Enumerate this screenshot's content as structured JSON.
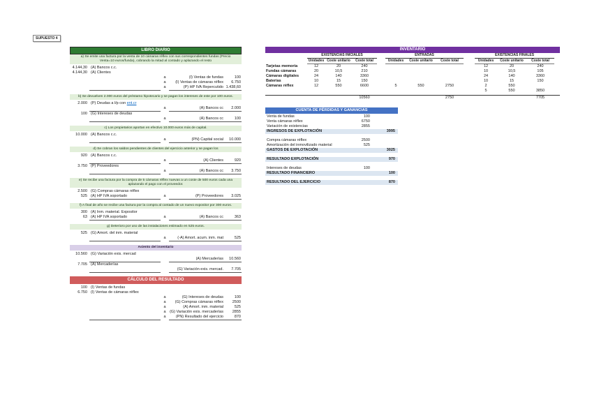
{
  "colors": {
    "green_header": "#2e7b32",
    "green_band": "#e2efda",
    "purple_header": "#7030a0",
    "purple_band": "#d9cfe8",
    "red_header": "#d05c5c",
    "blue_header": "#4472c4",
    "blue_band": "#dce6f1",
    "link": "#0563c1"
  },
  "page": {
    "label": "SUPUESTO 4"
  },
  "journal": {
    "title": "LIBRO DIARIO",
    "sections": [
      {
        "band": "a) Se emite una factura por la venta de 10 cámaras réflex con sus correspondientes fundas (Precio Venta=10 euros/funda), cobrando la mitad al contado y aplazando el resto",
        "band_style": "green",
        "lines": [
          {
            "da": "4.144,30",
            "dt": "(A) Bancos c.c."
          },
          {
            "da": "4.144,30",
            "dt": "(A) Clientes"
          },
          {
            "sep": "a",
            "ct": "(I) Ventas de fundas",
            "ca": "100"
          },
          {
            "sep": "a",
            "ct": "(I) Ventas de cámaras réflex",
            "ca": "6.750"
          },
          {
            "du": true,
            "sep": "a",
            "ct": "(P) HP IVA Repercutido",
            "ca": "1.438,60",
            "cu": true
          }
        ]
      },
      {
        "band": "b) Se devuelven 2.000 euros del préstamo hipotecario y se pagan los intereses de este por 100 euros.",
        "band_style": "green",
        "lines": [
          {
            "da": "2.000",
            "dt": "(P) Deudas a l/p con ",
            "dl": "ent.cr"
          },
          {
            "du": true,
            "sep": "a",
            "ct": "(A) Bancos cc",
            "ca": "2.000",
            "cu": true
          },
          {
            "da": "100",
            "dt": "(G) Intereses de deudas"
          },
          {
            "du": true,
            "sep": "a",
            "ct": "(A) Bancos cc",
            "ca": "100",
            "cu": true
          }
        ]
      },
      {
        "band": "c) Los propietarios aportan en efectivo 10.000 euros más de capital.",
        "band_style": "green",
        "lines": [
          {
            "da": "10.000",
            "dt": "(A) Bancos c.c."
          },
          {
            "du": true,
            "sep": "a",
            "ct": "(PN) Capital social",
            "ca": "10.000",
            "cu": true
          }
        ]
      },
      {
        "band": "d) Se cobran los saldos pendientes de clientes del ejercicio anterior y se pagan los",
        "band_style": "green",
        "lines": [
          {
            "da": "920",
            "dt": "(A) Bancos c.c."
          },
          {
            "du": true,
            "sep": "a",
            "ct": "(A) Clientes",
            "ca": "920",
            "cu": true
          },
          {
            "da": "3.750",
            "dt": "(P) Proveedores"
          },
          {
            "du": true,
            "sep": "a",
            "ct": "(A) Bancos cc",
            "ca": "3.750",
            "cu": true
          }
        ]
      },
      {
        "band": "e) Se recibe una factura por la compra de 5 cámaras réflex nuevas a un coste de 500 euros cada una aplazando el pago con el proveedor.",
        "band_style": "green",
        "lines": [
          {
            "da": "2.500",
            "dt": "(G) Compras cámaras réflex"
          },
          {
            "da": "525",
            "dt": "(A) HP IVA soportado",
            "du": true,
            "sep": "a",
            "ct": "(P) Proveedores",
            "ca": "3.025",
            "cu": true
          }
        ]
      },
      {
        "band": "f) A final de año se recibe una factura por la compra al contado de un nuevo expositor por 300 euros.",
        "band_style": "green",
        "lines": [
          {
            "da": "300",
            "dt": "(A) Inm. material. Expositor"
          },
          {
            "da": "63",
            "dt": "(A) HP IVA soportado",
            "du": true,
            "sep": "a",
            "ct": "(A) Bancos cc",
            "ca": "363",
            "cu": true
          }
        ]
      },
      {
        "band": "g) Deterioro por uso de las instalaciones estimado en 525 euros.",
        "band_style": "green",
        "lines": [
          {
            "da": "525",
            "dt": "(G) Amort. del inm. material"
          },
          {
            "du": true,
            "sep": "a",
            "ct": "(-A) Amort. acum. inm. mat",
            "ca": "525",
            "cu": true
          }
        ]
      },
      {
        "band": "Asiento del inventario",
        "band_style": "purple",
        "lines": [
          {
            "da": "10.560",
            "dt": "(G) Variación exis. mercad"
          },
          {
            "du": true,
            "ct": "(A) Mercaderías",
            "ca": "10.560",
            "cu": true
          },
          {
            "da": "7.705",
            "dt": "(A) Mercaderías"
          },
          {
            "du": true,
            "ct": "(G) Variación exis. mercad.",
            "ca": "7.705",
            "cu": true
          }
        ]
      },
      {
        "band": "CÁLCULO DEL RESULTADO",
        "band_style": "red",
        "lines": [
          {
            "da": "100",
            "dt": "(I) Ventas de fundas"
          },
          {
            "da": "6.750",
            "dt": "(I) Ventas de cámaras réflex"
          },
          {
            "sep": "a",
            "ct": "(G) Intereses de deudas",
            "ca": "100"
          },
          {
            "sep": "a",
            "ct": "(G) Compras cámaras réflex",
            "ca": "2500"
          },
          {
            "sep": "a",
            "ct": "(A) Amort. inm. material",
            "ca": "525"
          },
          {
            "sep": "a",
            "ct": "(G) Variación exis. mercaderías",
            "ca": "2855"
          },
          {
            "du": true,
            "sep": "a",
            "ct": "(PN) Resultado del ejercicio",
            "ca": "870",
            "cu": true
          }
        ]
      }
    ]
  },
  "inventory": {
    "title": "INVENTARIO",
    "groups": [
      "EXISTENCIAS INICIALES",
      "ENTRADAS",
      "EXISTENCIAS FINALES"
    ],
    "columns": [
      "Unidades",
      "Coste unitario",
      "Coste total"
    ],
    "rows": [
      {
        "label": "Tarjetas memoria",
        "values": [
          "12",
          "20",
          "240",
          "",
          "",
          "",
          "12",
          "20",
          "240"
        ]
      },
      {
        "label": "Fundas cámaras",
        "values": [
          "20",
          "10,5",
          "210",
          "",
          "",
          "",
          "10",
          "10,5",
          "105"
        ]
      },
      {
        "label": "Cámaras digitales",
        "values": [
          "24",
          "140",
          "3360",
          "",
          "",
          "",
          "24",
          "140",
          "3360"
        ]
      },
      {
        "label": "Baterías",
        "values": [
          "10",
          "15",
          "150",
          "",
          "",
          "",
          "10",
          "15",
          "150"
        ]
      },
      {
        "label": "Cámaras réflex",
        "values": [
          "12",
          "550",
          "6600",
          "5",
          "550",
          "2750",
          "2",
          "550",
          ""
        ]
      },
      {
        "label": "",
        "values": [
          "",
          "",
          "",
          "",
          "",
          "",
          "5",
          "550",
          "3850"
        ]
      }
    ],
    "totals": {
      "iniciales": "10560",
      "entradas": "2750",
      "finales": "7705"
    }
  },
  "pnl": {
    "title": "CUENTA DE PÉRDIDAS Y GANANCIAS",
    "rows": [
      {
        "label": "Venta de fundas",
        "col1": "100"
      },
      {
        "label": "Venta cámaras réflex",
        "col1": "6750"
      },
      {
        "label": "Variación de existencias",
        "col1": "2855"
      },
      {
        "label": "INGRESOS DE EXPLOTACIÓN",
        "col2": "3995",
        "band": true
      },
      {
        "spacer": true
      },
      {
        "label": "Compra cámaras réflex",
        "col1": "2500"
      },
      {
        "label": "Amortización del inmovilizado material",
        "col1": "525"
      },
      {
        "label": "GASTOS DE EXPLOTACIÓN",
        "col2": "3025",
        "band": true
      },
      {
        "spacer": true
      },
      {
        "label": "RESULTADO EXPLOTACIÓN",
        "col2": "970",
        "band": true
      },
      {
        "spacer": true
      },
      {
        "label": "Intereses de deudas",
        "col1": "100"
      },
      {
        "label": "RESULTADO FINANCIERO",
        "col2": "100",
        "band": true
      },
      {
        "spacer": true
      },
      {
        "label": "RESULTADO DEL EJERCICIO",
        "col2": "870",
        "band": true
      }
    ]
  }
}
